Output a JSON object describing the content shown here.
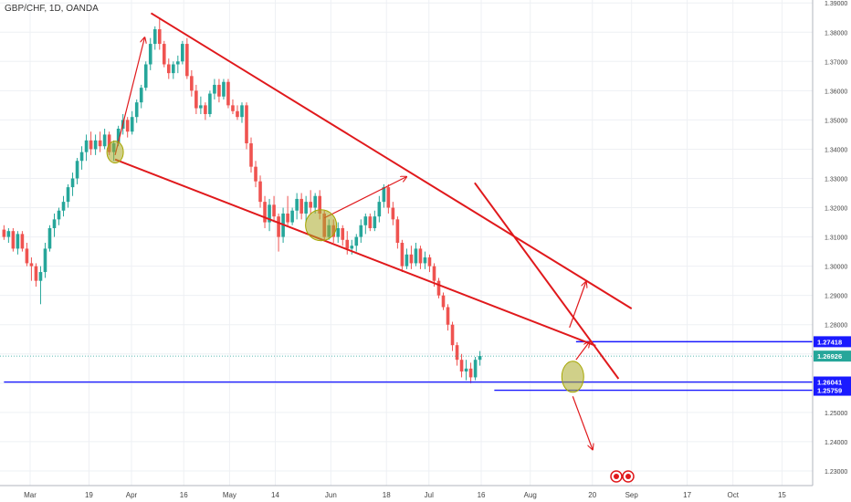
{
  "header": {
    "title": "GBP/CHF, 1D, OANDA"
  },
  "chart_data": {
    "type": "candlestick",
    "ylim": [
      1.225,
      1.391
    ],
    "y_ticks": [
      "1.39000",
      "1.38000",
      "1.37000",
      "1.36000",
      "1.35000",
      "1.34000",
      "1.33000",
      "1.32000",
      "1.31000",
      "1.30000",
      "1.29000",
      "1.28000",
      "1.27000",
      "1.26000",
      "1.25000",
      "1.24000",
      "1.23000"
    ],
    "x_labels": [
      "Mar",
      "19",
      "Apr",
      "16",
      "May",
      "14",
      "Jun",
      "18",
      "Jul",
      "16",
      "Aug",
      "20",
      "Sep",
      "17",
      "Oct",
      "15"
    ],
    "x_label_days": [
      0,
      18,
      31,
      47,
      61,
      75,
      92,
      109,
      122,
      138,
      153,
      172,
      184,
      201,
      215,
      230
    ],
    "candle_start_day": -8,
    "candles": [
      [
        1.3125,
        1.314,
        1.309,
        1.31
      ],
      [
        1.31,
        1.313,
        1.308,
        1.312
      ],
      [
        1.312,
        1.313,
        1.305,
        1.306
      ],
      [
        1.306,
        1.312,
        1.304,
        1.311
      ],
      [
        1.311,
        1.312,
        1.305,
        1.306
      ],
      [
        1.306,
        1.308,
        1.3,
        1.301
      ],
      [
        1.301,
        1.303,
        1.295,
        1.3
      ],
      [
        1.3,
        1.301,
        1.293,
        1.295
      ],
      [
        1.295,
        1.3,
        1.287,
        1.298
      ],
      [
        1.298,
        1.308,
        1.296,
        1.306
      ],
      [
        1.306,
        1.314,
        1.305,
        1.313
      ],
      [
        1.313,
        1.318,
        1.31,
        1.316
      ],
      [
        1.316,
        1.32,
        1.314,
        1.319
      ],
      [
        1.319,
        1.324,
        1.317,
        1.322
      ],
      [
        1.322,
        1.328,
        1.32,
        1.327
      ],
      [
        1.327,
        1.332,
        1.324,
        1.33
      ],
      [
        1.33,
        1.337,
        1.328,
        1.336
      ],
      [
        1.336,
        1.341,
        1.333,
        1.339
      ],
      [
        1.339,
        1.345,
        1.336,
        1.343
      ],
      [
        1.343,
        1.346,
        1.338,
        1.34
      ],
      [
        1.34,
        1.345,
        1.338,
        1.343
      ],
      [
        1.343,
        1.346,
        1.339,
        1.341
      ],
      [
        1.341,
        1.347,
        1.34,
        1.345
      ],
      [
        1.345,
        1.346,
        1.338,
        1.339
      ],
      [
        1.339,
        1.343,
        1.336,
        1.342
      ],
      [
        1.342,
        1.348,
        1.341,
        1.347
      ],
      [
        1.347,
        1.352,
        1.345,
        1.35
      ],
      [
        1.35,
        1.351,
        1.344,
        1.346
      ],
      [
        1.346,
        1.353,
        1.345,
        1.351
      ],
      [
        1.351,
        1.357,
        1.349,
        1.356
      ],
      [
        1.356,
        1.362,
        1.354,
        1.361
      ],
      [
        1.361,
        1.37,
        1.36,
        1.369
      ],
      [
        1.369,
        1.378,
        1.367,
        1.376
      ],
      [
        1.376,
        1.382,
        1.374,
        1.381
      ],
      [
        1.381,
        1.385,
        1.374,
        1.376
      ],
      [
        1.376,
        1.377,
        1.368,
        1.369
      ],
      [
        1.369,
        1.371,
        1.364,
        1.366
      ],
      [
        1.366,
        1.37,
        1.364,
        1.369
      ],
      [
        1.369,
        1.372,
        1.366,
        1.37
      ],
      [
        1.37,
        1.377,
        1.369,
        1.376
      ],
      [
        1.376,
        1.378,
        1.364,
        1.365
      ],
      [
        1.365,
        1.367,
        1.358,
        1.36
      ],
      [
        1.36,
        1.362,
        1.352,
        1.354
      ],
      [
        1.354,
        1.358,
        1.352,
        1.355
      ],
      [
        1.355,
        1.356,
        1.35,
        1.352
      ],
      [
        1.352,
        1.36,
        1.351,
        1.359
      ],
      [
        1.359,
        1.364,
        1.357,
        1.362
      ],
      [
        1.362,
        1.364,
        1.356,
        1.358
      ],
      [
        1.358,
        1.364,
        1.357,
        1.363
      ],
      [
        1.363,
        1.364,
        1.354,
        1.355
      ],
      [
        1.355,
        1.357,
        1.352,
        1.353
      ],
      [
        1.353,
        1.355,
        1.35,
        1.351
      ],
      [
        1.351,
        1.356,
        1.349,
        1.355
      ],
      [
        1.355,
        1.356,
        1.34,
        1.342
      ],
      [
        1.342,
        1.344,
        1.332,
        1.334
      ],
      [
        1.334,
        1.336,
        1.327,
        1.329
      ],
      [
        1.329,
        1.331,
        1.32,
        1.322
      ],
      [
        1.322,
        1.324,
        1.313,
        1.315
      ],
      [
        1.315,
        1.323,
        1.312,
        1.321
      ],
      [
        1.321,
        1.324,
        1.315,
        1.317
      ],
      [
        1.317,
        1.318,
        1.305,
        1.31
      ],
      [
        1.31,
        1.32,
        1.308,
        1.318
      ],
      [
        1.318,
        1.324,
        1.314,
        1.315
      ],
      [
        1.315,
        1.32,
        1.314,
        1.319
      ],
      [
        1.319,
        1.325,
        1.316,
        1.323
      ],
      [
        1.323,
        1.325,
        1.316,
        1.318
      ],
      [
        1.318,
        1.324,
        1.315,
        1.322
      ],
      [
        1.322,
        1.326,
        1.318,
        1.32
      ],
      [
        1.32,
        1.325,
        1.318,
        1.324
      ],
      [
        1.324,
        1.326,
        1.316,
        1.318
      ],
      [
        1.318,
        1.319,
        1.309,
        1.31
      ],
      [
        1.31,
        1.316,
        1.309,
        1.314
      ],
      [
        1.314,
        1.316,
        1.308,
        1.31
      ],
      [
        1.31,
        1.315,
        1.308,
        1.313
      ],
      [
        1.313,
        1.314,
        1.307,
        1.309
      ],
      [
        1.309,
        1.312,
        1.304,
        1.306
      ],
      [
        1.306,
        1.309,
        1.304,
        1.307
      ],
      [
        1.307,
        1.311,
        1.305,
        1.31
      ],
      [
        1.31,
        1.316,
        1.308,
        1.314
      ],
      [
        1.314,
        1.318,
        1.311,
        1.317
      ],
      [
        1.317,
        1.318,
        1.312,
        1.313
      ],
      [
        1.313,
        1.319,
        1.312,
        1.317
      ],
      [
        1.317,
        1.324,
        1.315,
        1.322
      ],
      [
        1.322,
        1.328,
        1.32,
        1.327
      ],
      [
        1.327,
        1.328,
        1.318,
        1.32
      ],
      [
        1.32,
        1.322,
        1.314,
        1.316
      ],
      [
        1.316,
        1.317,
        1.306,
        1.308
      ],
      [
        1.308,
        1.309,
        1.298,
        1.3
      ],
      [
        1.3,
        1.306,
        1.299,
        1.304
      ],
      [
        1.304,
        1.307,
        1.299,
        1.301
      ],
      [
        1.301,
        1.308,
        1.3,
        1.306
      ],
      [
        1.306,
        1.307,
        1.299,
        1.301
      ],
      [
        1.301,
        1.305,
        1.299,
        1.303
      ],
      [
        1.303,
        1.304,
        1.298,
        1.3
      ],
      [
        1.3,
        1.301,
        1.293,
        1.295
      ],
      [
        1.295,
        1.296,
        1.289,
        1.29
      ],
      [
        1.29,
        1.291,
        1.285,
        1.286
      ],
      [
        1.286,
        1.287,
        1.278,
        1.28
      ],
      [
        1.28,
        1.281,
        1.271,
        1.273
      ],
      [
        1.273,
        1.274,
        1.266,
        1.268
      ],
      [
        1.268,
        1.27,
        1.262,
        1.264
      ],
      [
        1.264,
        1.268,
        1.261,
        1.265
      ],
      [
        1.265,
        1.267,
        1.26,
        1.262
      ],
      [
        1.262,
        1.269,
        1.261,
        1.268
      ],
      [
        1.268,
        1.271,
        1.266,
        1.2693
      ]
    ],
    "trend_lines": [
      {
        "from": [
          37,
          1.3865
        ],
        "to": [
          184,
          1.2855
        ]
      },
      {
        "from": [
          26,
          1.3365
        ],
        "to": [
          173,
          1.2728
        ]
      },
      {
        "from": [
          136,
          1.3285
        ],
        "to": [
          180,
          1.2615
        ]
      },
      {
        "from": [
          26,
          1.338
        ],
        "to": [
          35,
          1.378
        ]
      },
      {
        "from": [
          90,
          1.3165
        ],
        "to": [
          115,
          1.3305
        ]
      },
      {
        "from": [
          165,
          1.279
        ],
        "to": [
          170,
          1.2945
        ]
      },
      {
        "from": [
          167,
          1.268
        ],
        "to": [
          171,
          1.274
        ]
      },
      {
        "from": [
          166,
          1.2555
        ],
        "to": [
          172,
          1.2375
        ]
      }
    ],
    "highlight_circles": [
      {
        "day": 26,
        "price": 1.339
      },
      {
        "day": 89,
        "price": 1.314
      },
      {
        "day": 166,
        "price": 1.2622
      }
    ],
    "price_lines": [
      {
        "value": 1.27418,
        "label": "1.27418",
        "color": "#1a1aff",
        "start_day": 167
      },
      {
        "value": 1.26041,
        "label": "1.26041",
        "color": "#1a1aff",
        "start_day": -8
      },
      {
        "value": 1.25759,
        "label": "1.25759",
        "color": "#1a1aff",
        "start_day": 142
      }
    ],
    "current_price": {
      "value": 1.26926,
      "label": "1.26926",
      "color": "#26a69a"
    },
    "colors": {
      "up": "#26a69a",
      "down": "#ef5350",
      "trend": "#e0191c",
      "highlight": "#a6a600"
    }
  }
}
